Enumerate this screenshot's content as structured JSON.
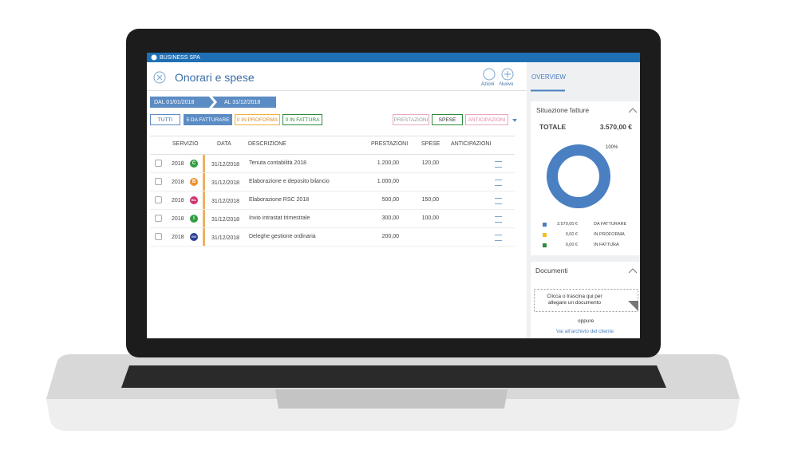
{
  "app": {
    "company": "BUSINESS SPA"
  },
  "header": {
    "title": "Onorari e spese",
    "actions": [
      "Azioni",
      "Nuovo"
    ]
  },
  "date_range": {
    "from": "DAL 01/01/2018",
    "to": "AL 31/12/2018"
  },
  "filters": [
    "TUTTI",
    "5 DA FATTURARE",
    "0 IN PROFORMA",
    "0 IN FATTURA"
  ],
  "type_filters": [
    "PRESTAZIONI",
    "SPESE",
    "ANTICIPAZIONI"
  ],
  "table": {
    "columns": [
      "SERVIZIO",
      "DATA",
      "DESCRIZIONE",
      "PRESTAZIONI",
      "SPESE",
      "ANTICIPAZIONI"
    ],
    "rows": [
      {
        "year": "2018",
        "badge": "C",
        "badge_color": "#2e9e3e",
        "date": "31/12/2018",
        "description": "Tenuta contabilità 2018",
        "prestazioni": "1.200,00",
        "spese": "120,00"
      },
      {
        "year": "2018",
        "badge": "B",
        "badge_color": "#f0902a",
        "date": "31/12/2018",
        "description": "Elaborazione e deposito bilancio",
        "prestazioni": "1.000,00"
      },
      {
        "year": "2018",
        "badge": "BIL",
        "badge_color": "#d0336e",
        "date": "31/12/2018",
        "description": "Elaborazione RSC 2018",
        "prestazioni": "500,00",
        "spese": "150,00"
      },
      {
        "year": "2018",
        "badge": "I",
        "badge_color": "#2e9e3e",
        "date": "31/12/2018",
        "description": "Invio intrastat trimestrale",
        "prestazioni": "300,00",
        "spese": "100,00"
      },
      {
        "year": "2018",
        "badge": "GO",
        "badge_color": "#2a3f9a",
        "date": "31/12/2018",
        "description": "Deleghe gestione ordinaria",
        "prestazioni": "200,00"
      }
    ]
  },
  "overview": {
    "tab": "OVERVIEW",
    "section": "Situazione fatture",
    "total_label": "TOTALE",
    "total": "3.570,00 €",
    "donut": {
      "value": 100,
      "label": "100%",
      "color": "#4a7fc1"
    },
    "legend": [
      {
        "amount": "3.570,00 €",
        "label": "DA FATTURARE",
        "color": "#4a7fc1"
      },
      {
        "amount": "0,00 €",
        "label": "IN PROFORMA",
        "color": "#f0c020"
      },
      {
        "amount": "0,00 €",
        "label": "IN FATTURA",
        "color": "#2e8b3e"
      }
    ]
  },
  "documents": {
    "title": "Documenti",
    "dropzone": "Clicca o trascina qui per allegare un documento",
    "or": "oppure",
    "link": "Vai all'archivio del cliente"
  }
}
